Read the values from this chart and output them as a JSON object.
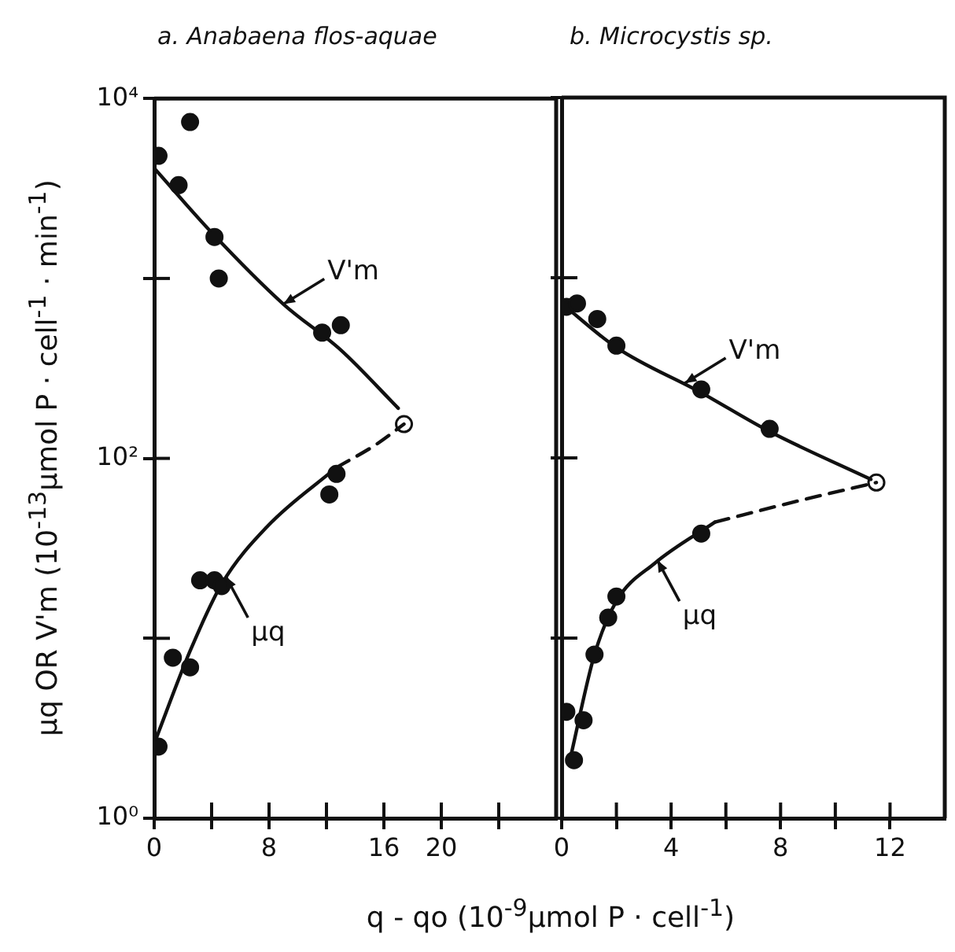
{
  "chart_data": [
    {
      "type": "scatter",
      "title": "a. Anabaena flos-aquae",
      "xlabel": "q - qo (10$^{-9}$μmol P · cell$^{-1}$)",
      "ylabel": "μq OR V'm (10$^{-13}$μmol P · cell$^{-1}$ · min$^{-1}$)",
      "log": "y",
      "xlim": [
        0,
        28
      ],
      "xticks": [
        0,
        {
          "value": 4,
          "label": null
        },
        8,
        {
          "value": 12,
          "label": null
        },
        16,
        20,
        {
          "value": 24,
          "label": null
        }
      ],
      "ylim": [
        1,
        10000
      ],
      "yticks": [
        {
          "value": 1,
          "label": "10⁰"
        },
        {
          "value": 10,
          "label": null
        },
        {
          "value": 100,
          "label": "10²"
        },
        {
          "value": 1000,
          "label": null
        },
        {
          "value": 10000,
          "label": "10⁴"
        }
      ],
      "series": [
        {
          "type": "scatter",
          "color": "#111111",
          "marker": "circle",
          "x": [
            0.3,
            1.7,
            2.5,
            4.2,
            4.5,
            11.7,
            13.0
          ],
          "values": [
            4800,
            3300,
            7400,
            1700,
            1000,
            500,
            550
          ]
        },
        {
          "type": "line",
          "color": "#111111",
          "marker": "none",
          "line_style": "solid",
          "x": [
            0,
            4,
            9,
            13,
            17
          ],
          "values": [
            4100,
            1800,
            720,
            400,
            190
          ]
        },
        {
          "type": "scatter",
          "color": "#111111",
          "marker": "circle",
          "x": [
            0.3,
            1.3,
            2.5,
            3.2,
            4.2,
            4.7,
            12.2,
            12.7
          ],
          "values": [
            2.5,
            7.8,
            6.9,
            21,
            21,
            19.5,
            63,
            82
          ]
        },
        {
          "type": "line",
          "color": "#111111",
          "marker": "none",
          "line_style": "solid",
          "x": [
            0,
            2.5,
            4.7,
            7.9,
            12.7
          ],
          "values": [
            2.6,
            8.5,
            20,
            42,
            89
          ]
        },
        {
          "type": "line",
          "color": "#111111",
          "marker": "none",
          "line_style": "dashed",
          "x": [
            12.7,
            15.5,
            17.4
          ],
          "values": [
            89,
            120,
            155
          ]
        },
        {
          "type": "scatter",
          "color": "#ffffff",
          "marker": "circle",
          "x": [
            17.4
          ],
          "values": [
            155
          ]
        }
      ],
      "annotations": [
        {
          "text": "V'm",
          "x": 9,
          "y": 720
        },
        {
          "text": "μq",
          "x": 5,
          "y": 22
        }
      ]
    },
    {
      "type": "scatter",
      "title": "b. Microcystis sp.",
      "log": "y",
      "tick_labels": "x",
      "xlim": [
        0,
        14
      ],
      "xticks": [
        0,
        {
          "value": 2,
          "label": null
        },
        4,
        {
          "value": 6,
          "label": null
        },
        8,
        {
          "value": 10,
          "label": null
        },
        12
      ],
      "ylim": [
        1,
        10000
      ],
      "yticks": [
        {
          "value": 1,
          "label": null
        },
        {
          "value": 10,
          "label": null
        },
        {
          "value": 100,
          "label": null
        },
        {
          "value": 1000,
          "label": null
        },
        {
          "value": 10000,
          "label": null
        }
      ],
      "series": [
        {
          "type": "scatter",
          "color": "#111111",
          "marker": "circle",
          "x": [
            0.17,
            0.56,
            1.3,
            2.0,
            5.1,
            7.6
          ],
          "values": [
            690,
            720,
            590,
            420,
            240,
            145
          ]
        },
        {
          "type": "line",
          "color": "#111111",
          "marker": "none",
          "line_style": "solid",
          "x": [
            0,
            2,
            5.1,
            7.6,
            11.3
          ],
          "values": [
            720,
            410,
            230,
            140,
            76
          ]
        },
        {
          "type": "scatter",
          "color": "#111111",
          "marker": "circle",
          "x": [
            0.17,
            0.45,
            0.8,
            1.2,
            1.7,
            2.0,
            5.1
          ],
          "values": [
            3.9,
            2.1,
            3.5,
            8.1,
            13,
            17,
            38
          ]
        },
        {
          "type": "line",
          "color": "#111111",
          "marker": "none",
          "line_style": "solid",
          "x": [
            0.3,
            1.2,
            2,
            3.4,
            5.6
          ],
          "values": [
            2.1,
            8.1,
            16,
            26,
            44
          ]
        },
        {
          "type": "line",
          "color": "#111111",
          "marker": "none",
          "line_style": "dashed",
          "x": [
            5.6,
            8.5,
            11.5
          ],
          "values": [
            44,
            57,
            73
          ]
        },
        {
          "type": "scatter",
          "color": "#ffffff",
          "marker": "circle",
          "x": [
            11.5
          ],
          "values": [
            73
          ]
        }
      ],
      "annotations": [
        {
          "text": "V'm",
          "x": 4.5,
          "y": 260
        },
        {
          "text": "μq",
          "x": 3.5,
          "y": 27
        }
      ]
    }
  ]
}
